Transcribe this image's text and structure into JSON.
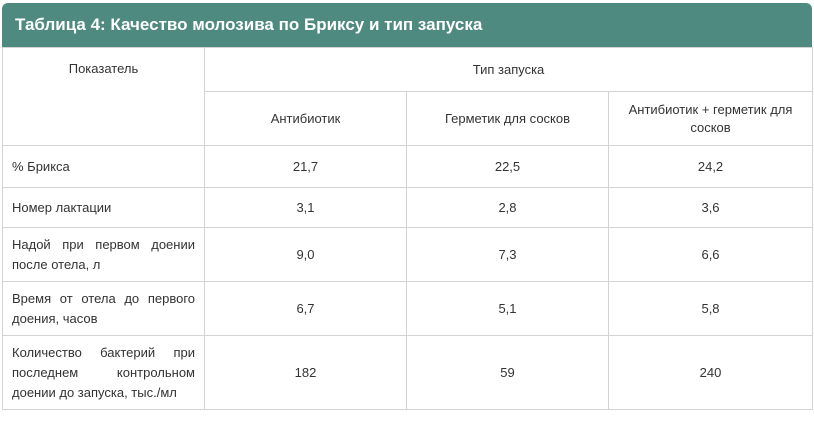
{
  "table": {
    "title": "Таблица 4: Качество молозива по Бриксу и тип запуска",
    "header": {
      "indicator": "Показатель",
      "group": "Тип запуска",
      "columns": [
        "Антибиотик",
        "Герметик для сосков",
        "Антибиотик + герметик для сосков"
      ]
    },
    "rows": [
      {
        "label": "% Брикса",
        "values": [
          "21,7",
          "22,5",
          "24,2"
        ]
      },
      {
        "label": "Номер лактации",
        "values": [
          "3,1",
          "2,8",
          "3,6"
        ]
      },
      {
        "label": "Надой при первом доении после отела, л",
        "values": [
          "9,0",
          "7,3",
          "6,6"
        ]
      },
      {
        "label": "Время от отела до первого доения, часов",
        "values": [
          "6,7",
          "5,1",
          "5,8"
        ]
      },
      {
        "label": "Количество бактерий при последнем контрольном доении до запуска, тыс./мл",
        "values": [
          "182",
          "59",
          "240"
        ]
      }
    ]
  }
}
